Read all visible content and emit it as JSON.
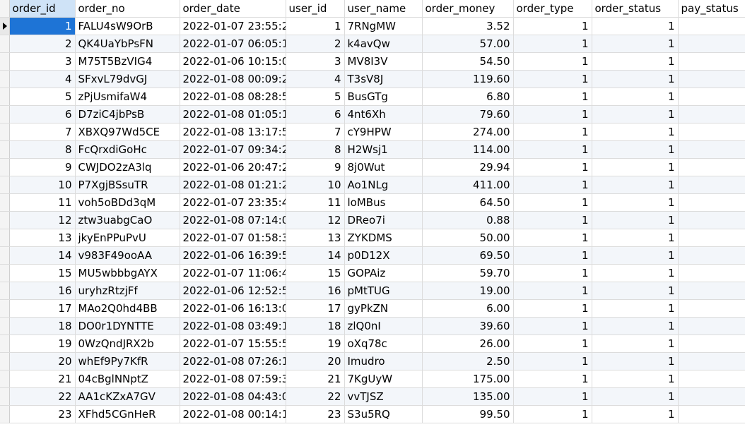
{
  "grid": {
    "columns": [
      {
        "key": "order_id",
        "label": "order_id"
      },
      {
        "key": "order_no",
        "label": "order_no"
      },
      {
        "key": "order_date",
        "label": "order_date"
      },
      {
        "key": "user_id",
        "label": "user_id"
      },
      {
        "key": "user_name",
        "label": "user_name"
      },
      {
        "key": "order_money",
        "label": "order_money"
      },
      {
        "key": "order_type",
        "label": "order_type"
      },
      {
        "key": "order_status",
        "label": "order_status"
      },
      {
        "key": "pay_status",
        "label": "pay_status"
      }
    ],
    "current_row_indicator_icon": "triangle-right-icon",
    "selection_color": "#1e74d6",
    "rows": [
      {
        "order_id": "1",
        "order_no": "FALU4sW9OrB",
        "order_date": "2022-01-07 23:55:22",
        "user_id": "1",
        "user_name": "7RNgMW",
        "order_money": "3.52",
        "order_type": "1",
        "order_status": "1",
        "pay_status": ""
      },
      {
        "order_id": "2",
        "order_no": "QK4UaYbPsFN",
        "order_date": "2022-01-07 06:05:19",
        "user_id": "2",
        "user_name": "k4avQw",
        "order_money": "57.00",
        "order_type": "1",
        "order_status": "1",
        "pay_status": ""
      },
      {
        "order_id": "3",
        "order_no": "M75T5BzVIG4",
        "order_date": "2022-01-06 10:15:05",
        "user_id": "3",
        "user_name": "MV8I3V",
        "order_money": "54.50",
        "order_type": "1",
        "order_status": "1",
        "pay_status": ""
      },
      {
        "order_id": "4",
        "order_no": "SFxvL79dvGJ",
        "order_date": "2022-01-08 00:09:22",
        "user_id": "4",
        "user_name": "T3sV8J",
        "order_money": "119.60",
        "order_type": "1",
        "order_status": "1",
        "pay_status": ""
      },
      {
        "order_id": "5",
        "order_no": "zPjUsmifaW4",
        "order_date": "2022-01-08 08:28:56",
        "user_id": "5",
        "user_name": "BusGTg",
        "order_money": "6.80",
        "order_type": "1",
        "order_status": "1",
        "pay_status": ""
      },
      {
        "order_id": "6",
        "order_no": "D7ziC4jbPsB",
        "order_date": "2022-01-08 01:05:11",
        "user_id": "6",
        "user_name": "4nt6Xh",
        "order_money": "79.60",
        "order_type": "1",
        "order_status": "1",
        "pay_status": ""
      },
      {
        "order_id": "7",
        "order_no": "XBXQ97Wd5CE",
        "order_date": "2022-01-08 13:17:53",
        "user_id": "7",
        "user_name": "cY9HPW",
        "order_money": "274.00",
        "order_type": "1",
        "order_status": "1",
        "pay_status": ""
      },
      {
        "order_id": "8",
        "order_no": "FcQrxdiGoHc",
        "order_date": "2022-01-07 09:34:26",
        "user_id": "8",
        "user_name": "H2Wsj1",
        "order_money": "114.00",
        "order_type": "1",
        "order_status": "1",
        "pay_status": ""
      },
      {
        "order_id": "9",
        "order_no": "CWJDO2zA3lq",
        "order_date": "2022-01-06 20:47:20",
        "user_id": "9",
        "user_name": "8j0Wut",
        "order_money": "29.94",
        "order_type": "1",
        "order_status": "1",
        "pay_status": ""
      },
      {
        "order_id": "10",
        "order_no": "P7XgjBSsuTR",
        "order_date": "2022-01-08 01:21:24",
        "user_id": "10",
        "user_name": "Ao1NLg",
        "order_money": "411.00",
        "order_type": "1",
        "order_status": "1",
        "pay_status": ""
      },
      {
        "order_id": "11",
        "order_no": "voh5oBDd3qM",
        "order_date": "2022-01-07 23:35:44",
        "user_id": "11",
        "user_name": "loMBus",
        "order_money": "64.50",
        "order_type": "1",
        "order_status": "1",
        "pay_status": ""
      },
      {
        "order_id": "12",
        "order_no": "ztw3uabgCaO",
        "order_date": "2022-01-08 07:14:06",
        "user_id": "12",
        "user_name": "DReo7i",
        "order_money": "0.88",
        "order_type": "1",
        "order_status": "1",
        "pay_status": ""
      },
      {
        "order_id": "13",
        "order_no": "jkyEnPPuPvU",
        "order_date": "2022-01-07 01:58:32",
        "user_id": "13",
        "user_name": "ZYKDMS",
        "order_money": "50.00",
        "order_type": "1",
        "order_status": "1",
        "pay_status": ""
      },
      {
        "order_id": "14",
        "order_no": "v983F49ooAA",
        "order_date": "2022-01-06 16:39:50",
        "user_id": "14",
        "user_name": "p0D12X",
        "order_money": "69.50",
        "order_type": "1",
        "order_status": "1",
        "pay_status": ""
      },
      {
        "order_id": "15",
        "order_no": "MU5wbbbgAYX",
        "order_date": "2022-01-07 11:06:43",
        "user_id": "15",
        "user_name": "GOPAiz",
        "order_money": "59.70",
        "order_type": "1",
        "order_status": "1",
        "pay_status": ""
      },
      {
        "order_id": "16",
        "order_no": "uryhzRtzjFf",
        "order_date": "2022-01-06 12:52:57",
        "user_id": "16",
        "user_name": "pMtTUG",
        "order_money": "19.00",
        "order_type": "1",
        "order_status": "1",
        "pay_status": ""
      },
      {
        "order_id": "17",
        "order_no": "MAo2Q0hd4BB",
        "order_date": "2022-01-06 16:13:00",
        "user_id": "17",
        "user_name": "gyPkZN",
        "order_money": "6.00",
        "order_type": "1",
        "order_status": "1",
        "pay_status": ""
      },
      {
        "order_id": "18",
        "order_no": "DO0r1DYNTTE",
        "order_date": "2022-01-08 03:49:10",
        "user_id": "18",
        "user_name": "zlQ0nI",
        "order_money": "39.60",
        "order_type": "1",
        "order_status": "1",
        "pay_status": ""
      },
      {
        "order_id": "19",
        "order_no": "0WzQndJRX2b",
        "order_date": "2022-01-07 15:55:54",
        "user_id": "19",
        "user_name": "oXq78c",
        "order_money": "26.00",
        "order_type": "1",
        "order_status": "1",
        "pay_status": ""
      },
      {
        "order_id": "20",
        "order_no": "whEf9Py7KfR",
        "order_date": "2022-01-08 07:26:11",
        "user_id": "20",
        "user_name": "Imudro",
        "order_money": "2.50",
        "order_type": "1",
        "order_status": "1",
        "pay_status": ""
      },
      {
        "order_id": "21",
        "order_no": "04cBglNNptZ",
        "order_date": "2022-01-08 07:59:33",
        "user_id": "21",
        "user_name": "7KgUyW",
        "order_money": "175.00",
        "order_type": "1",
        "order_status": "1",
        "pay_status": ""
      },
      {
        "order_id": "22",
        "order_no": "AA1cKZxA7GV",
        "order_date": "2022-01-08 04:43:07",
        "user_id": "22",
        "user_name": "vvTJSZ",
        "order_money": "135.00",
        "order_type": "1",
        "order_status": "1",
        "pay_status": ""
      },
      {
        "order_id": "23",
        "order_no": "XFhd5CGnHeR",
        "order_date": "2022-01-08 00:14:14",
        "user_id": "23",
        "user_name": "S3u5RQ",
        "order_money": "99.50",
        "order_type": "1",
        "order_status": "1",
        "pay_status": ""
      }
    ]
  }
}
